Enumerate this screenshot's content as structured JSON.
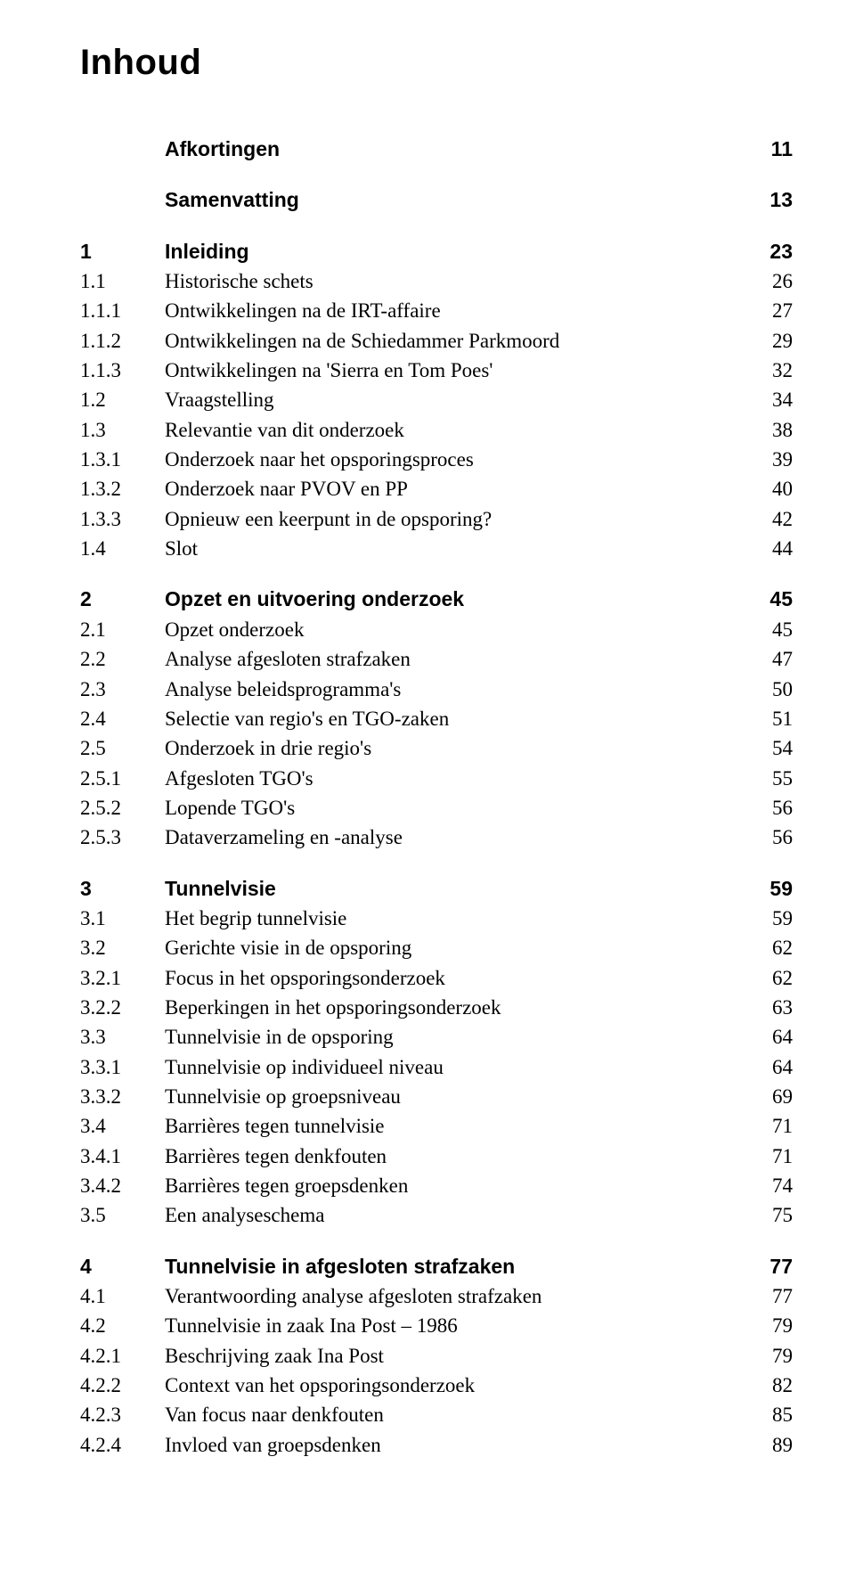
{
  "title": "Inhoud",
  "blocks": [
    {
      "entries": [
        {
          "num": "",
          "text": "Afkortingen",
          "page": "11",
          "bold": true
        }
      ]
    },
    {
      "entries": [
        {
          "num": "",
          "text": "Samenvatting",
          "page": "13",
          "bold": true
        }
      ]
    },
    {
      "entries": [
        {
          "num": "1",
          "text": "Inleiding",
          "page": "23",
          "bold": true
        },
        {
          "num": "1.1",
          "text": "Historische schets",
          "page": "26",
          "bold": false
        },
        {
          "num": "1.1.1",
          "text": "Ontwikkelingen na de IRT-affaire",
          "page": "27",
          "bold": false
        },
        {
          "num": "1.1.2",
          "text": "Ontwikkelingen na de Schiedammer Parkmoord",
          "page": "29",
          "bold": false
        },
        {
          "num": "1.1.3",
          "text": "Ontwikkelingen na 'Sierra en Tom Poes'",
          "page": "32",
          "bold": false
        },
        {
          "num": "1.2",
          "text": "Vraagstelling",
          "page": "34",
          "bold": false
        },
        {
          "num": "1.3",
          "text": "Relevantie van dit onderzoek",
          "page": "38",
          "bold": false
        },
        {
          "num": "1.3.1",
          "text": "Onderzoek naar het opsporingsproces",
          "page": "39",
          "bold": false
        },
        {
          "num": "1.3.2",
          "text": "Onderzoek naar PVOV en PP",
          "page": "40",
          "bold": false
        },
        {
          "num": "1.3.3",
          "text": "Opnieuw een keerpunt in de opsporing?",
          "page": "42",
          "bold": false
        },
        {
          "num": "1.4",
          "text": "Slot",
          "page": "44",
          "bold": false
        }
      ]
    },
    {
      "entries": [
        {
          "num": "2",
          "text": "Opzet en uitvoering onderzoek",
          "page": "45",
          "bold": true
        },
        {
          "num": "2.1",
          "text": "Opzet onderzoek",
          "page": "45",
          "bold": false
        },
        {
          "num": "2.2",
          "text": "Analyse afgesloten strafzaken",
          "page": "47",
          "bold": false
        },
        {
          "num": "2.3",
          "text": "Analyse beleidsprogramma's",
          "page": "50",
          "bold": false
        },
        {
          "num": "2.4",
          "text": "Selectie van regio's en TGO-zaken",
          "page": "51",
          "bold": false
        },
        {
          "num": "2.5",
          "text": "Onderzoek in drie regio's",
          "page": "54",
          "bold": false
        },
        {
          "num": "2.5.1",
          "text": "Afgesloten TGO's",
          "page": "55",
          "bold": false
        },
        {
          "num": "2.5.2",
          "text": "Lopende TGO's",
          "page": "56",
          "bold": false
        },
        {
          "num": "2.5.3",
          "text": "Dataverzameling en -analyse",
          "page": "56",
          "bold": false
        }
      ]
    },
    {
      "entries": [
        {
          "num": "3",
          "text": "Tunnelvisie",
          "page": "59",
          "bold": true
        },
        {
          "num": "3.1",
          "text": "Het begrip tunnelvisie",
          "page": "59",
          "bold": false
        },
        {
          "num": "3.2",
          "text": "Gerichte visie in de opsporing",
          "page": "62",
          "bold": false
        },
        {
          "num": "3.2.1",
          "text": "Focus in het opsporingsonderzoek",
          "page": "62",
          "bold": false
        },
        {
          "num": "3.2.2",
          "text": "Beperkingen in het opsporingsonderzoek",
          "page": "63",
          "bold": false
        },
        {
          "num": "3.3",
          "text": "Tunnelvisie in de opsporing",
          "page": "64",
          "bold": false
        },
        {
          "num": "3.3.1",
          "text": "Tunnelvisie op individueel niveau",
          "page": "64",
          "bold": false
        },
        {
          "num": "3.3.2",
          "text": "Tunnelvisie op groepsniveau",
          "page": "69",
          "bold": false
        },
        {
          "num": "3.4",
          "text": "Barrières tegen tunnelvisie",
          "page": "71",
          "bold": false
        },
        {
          "num": "3.4.1",
          "text": "Barrières tegen denkfouten",
          "page": "71",
          "bold": false
        },
        {
          "num": "3.4.2",
          "text": "Barrières tegen groepsdenken",
          "page": "74",
          "bold": false
        },
        {
          "num": "3.5",
          "text": "Een analyseschema",
          "page": "75",
          "bold": false
        }
      ]
    },
    {
      "entries": [
        {
          "num": "4",
          "text": "Tunnelvisie in afgesloten strafzaken",
          "page": "77",
          "bold": true
        },
        {
          "num": "4.1",
          "text": "Verantwoording analyse afgesloten strafzaken",
          "page": "77",
          "bold": false
        },
        {
          "num": "4.2",
          "text": "Tunnelvisie in zaak Ina Post – 1986",
          "page": "79",
          "bold": false
        },
        {
          "num": "4.2.1",
          "text": "Beschrijving zaak Ina Post",
          "page": "79",
          "bold": false
        },
        {
          "num": "4.2.2",
          "text": "Context van het opsporingsonderzoek",
          "page": "82",
          "bold": false
        },
        {
          "num": "4.2.3",
          "text": "Van focus naar denkfouten",
          "page": "85",
          "bold": false
        },
        {
          "num": "4.2.4",
          "text": "Invloed van groepsdenken",
          "page": "89",
          "bold": false
        }
      ]
    }
  ]
}
